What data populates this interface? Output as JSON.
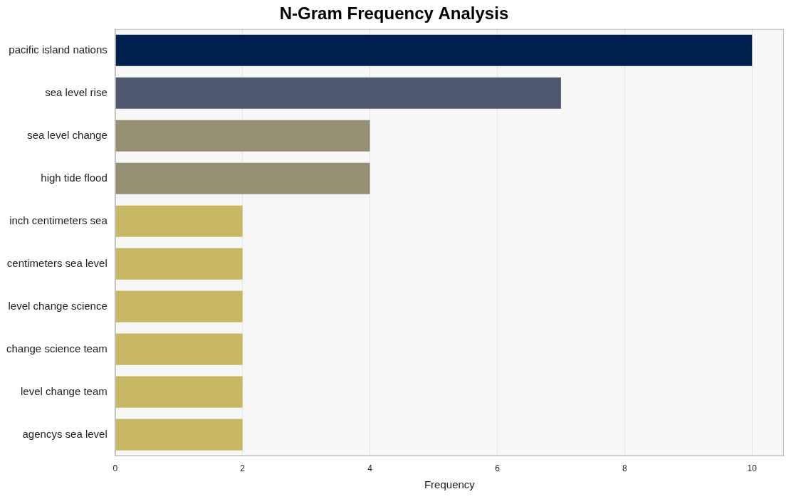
{
  "chart_data": {
    "type": "bar",
    "orientation": "horizontal",
    "title": "N-Gram Frequency Analysis",
    "x_label": "Frequency",
    "categories": [
      "pacific island nations",
      "sea level rise",
      "sea level change",
      "high tide flood",
      "inch centimeters sea",
      "centimeters sea level",
      "level change science",
      "change science team",
      "level change team",
      "agencys sea level"
    ],
    "values": [
      10,
      7,
      4,
      4,
      2,
      2,
      2,
      2,
      2,
      2
    ],
    "colors": [
      "#00204e",
      "#4f586e",
      "#958f74",
      "#958f74",
      "#c9b866",
      "#c9b866",
      "#c9b866",
      "#c9b866",
      "#c9b866",
      "#c9b866"
    ],
    "xlim": [
      0,
      10.5
    ],
    "xticks": [
      0,
      2,
      4,
      6,
      8,
      10
    ],
    "grid": true
  }
}
